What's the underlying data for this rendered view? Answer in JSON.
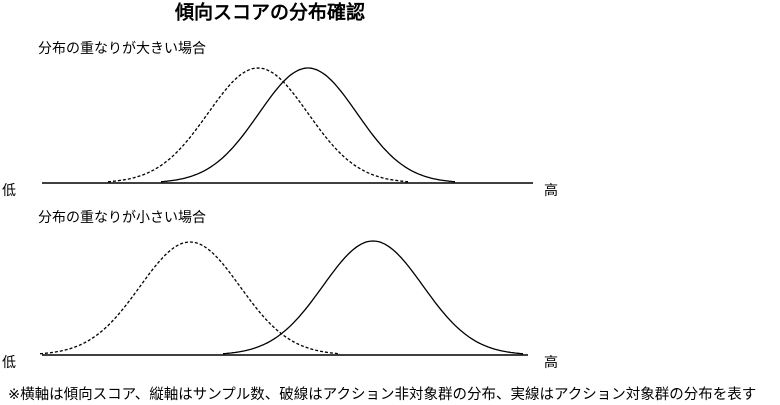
{
  "title": "傾向スコアの分布確認",
  "panels": [
    {
      "label": "分布の重なりが大きい場合",
      "low": "低",
      "high": "高"
    },
    {
      "label": "分布の重なりが小さい場合",
      "low": "低",
      "high": "高"
    }
  ],
  "note": "※横軸は傾向スコア、縦軸はサンプル数、破線はアクション非対象群の分布、実線はアクション対象群の分布を表す"
}
